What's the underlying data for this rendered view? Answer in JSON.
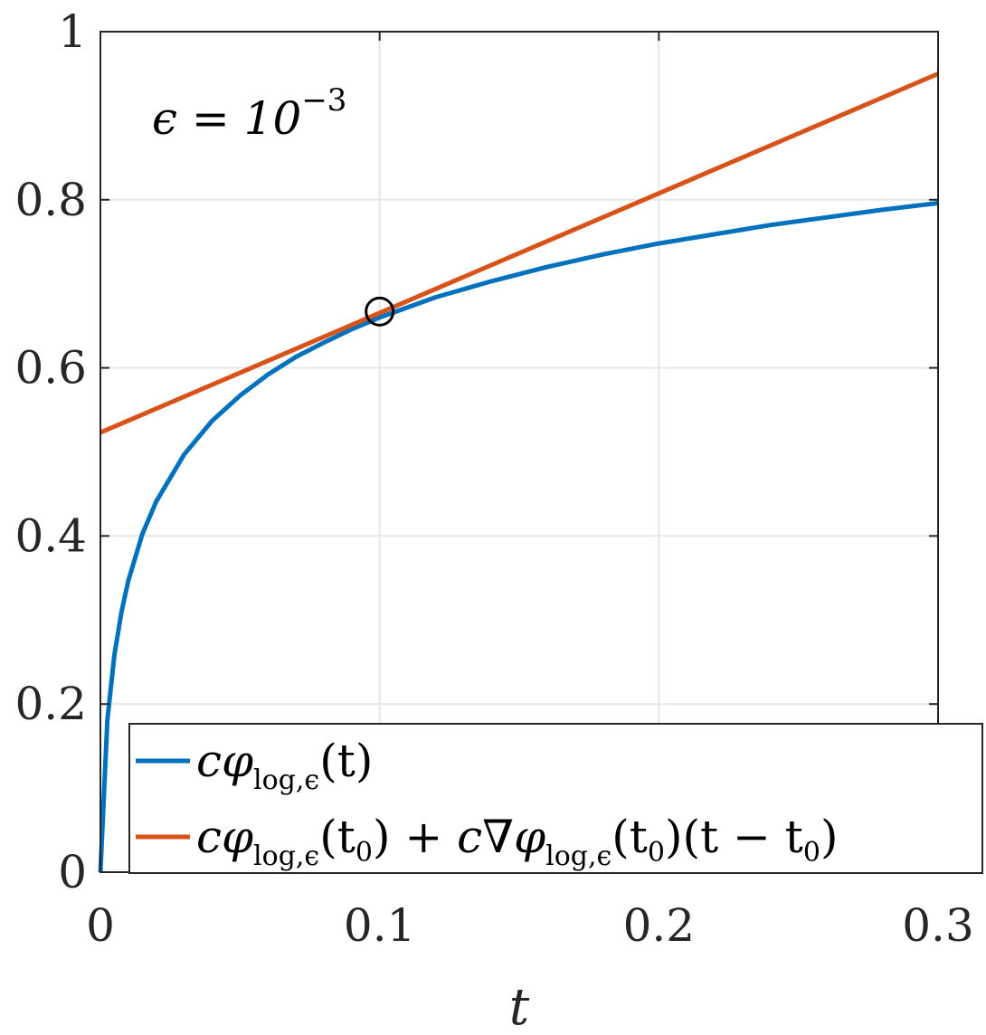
{
  "chart_data": {
    "type": "line",
    "xlabel": "t",
    "ylabel": "",
    "xlim": [
      0,
      0.3
    ],
    "ylim": [
      0,
      1
    ],
    "xticks": [
      0,
      0.1,
      0.2,
      0.3
    ],
    "xtick_labels": [
      "0",
      "0.1",
      "0.2",
      "0.3"
    ],
    "yticks": [
      0,
      0.2,
      0.4,
      0.6,
      0.8,
      1
    ],
    "ytick_labels": [
      "0",
      "0.2",
      "0.4",
      "0.6",
      "0.8",
      "1"
    ],
    "grid": true,
    "legend_position": "bottom-right",
    "annotation": {
      "prefix": "ϵ = 10",
      "exponent": "−3"
    },
    "series": [
      {
        "name": "cφ_log,ϵ(t)",
        "color": "#0072BD",
        "x": [
          0,
          0.0025,
          0.005,
          0.0075,
          0.01,
          0.015,
          0.02,
          0.03,
          0.04,
          0.05,
          0.06,
          0.07,
          0.08,
          0.09,
          0.1,
          0.12,
          0.14,
          0.16,
          0.18,
          0.2,
          0.22,
          0.24,
          0.26,
          0.28,
          0.3
        ],
        "y": [
          0,
          0.181,
          0.258,
          0.309,
          0.347,
          0.402,
          0.441,
          0.497,
          0.537,
          0.567,
          0.592,
          0.613,
          0.63,
          0.646,
          0.66,
          0.684,
          0.703,
          0.72,
          0.735,
          0.748,
          0.759,
          0.77,
          0.779,
          0.788,
          0.796
        ]
      },
      {
        "name": "cφ_log,ϵ(t0) + c∇φ_log,ϵ(t0)(t − t0)",
        "color": "#D95319",
        "x": [
          0,
          0.3
        ],
        "y": [
          0.523,
          0.95
        ]
      }
    ],
    "marker": {
      "x": 0.1,
      "y": 0.667,
      "shape": "circle",
      "color": "#000000"
    }
  },
  "legend": {
    "entry1": {
      "pre": "c",
      "phi": "φ",
      "sub": "log,ϵ",
      "args": "(t)"
    },
    "entry2": {
      "a_pre": "c",
      "a_phi": "φ",
      "a_sub": "log,ϵ",
      "a_open": "(t",
      "a_sub0": "0",
      "a_close": ")",
      "plus": " + ",
      "b_pre": "c",
      "b_nabla": "∇",
      "b_phi": "φ",
      "b_sub": "log,ϵ",
      "b_open": "(t",
      "b_sub0": "0",
      "b_mid": ")(t − t",
      "b_sub1": "0",
      "b_close": ")"
    }
  }
}
